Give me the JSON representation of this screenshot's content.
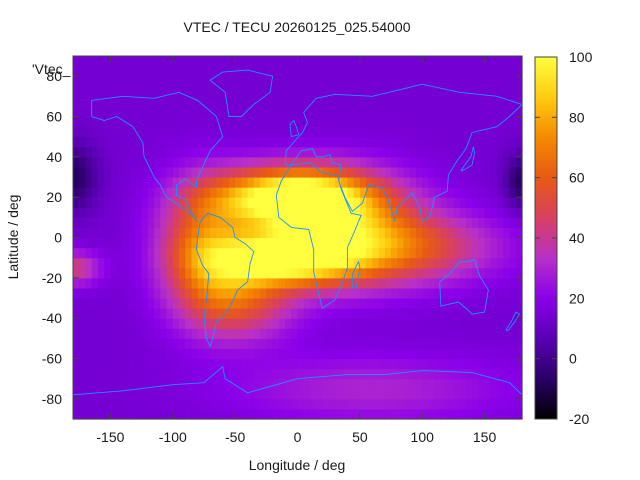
{
  "chart_data": {
    "type": "heatmap",
    "title": "VTEC / TECU 20260125_025.54000",
    "xlabel": "Longitude / deg",
    "ylabel": "Latitude / deg",
    "series_key": "'Vtec_",
    "xlim": [
      -180,
      180
    ],
    "ylim": [
      -90,
      90
    ],
    "x_ticks": [
      -150,
      -100,
      -50,
      0,
      50,
      100,
      150
    ],
    "x_tick_labels": [
      "-150",
      "-100",
      "-50",
      "0",
      "50",
      "100",
      "150"
    ],
    "y_ticks": [
      -80,
      -60,
      -40,
      -20,
      0,
      20,
      40,
      60,
      80
    ],
    "y_tick_labels": [
      "-80",
      "-60",
      "-40",
      "-20",
      "0",
      "20",
      "40",
      "60",
      "80"
    ],
    "colorbar": {
      "range": [
        -20,
        100
      ],
      "ticks": [
        -20,
        0,
        20,
        40,
        60,
        80,
        100
      ],
      "tick_labels": [
        "-20",
        "0",
        "20",
        "40",
        "60",
        "80",
        "100"
      ],
      "colors": [
        "#000000",
        "#2a0066",
        "#5a00b4",
        "#8a00ea",
        "#b830c8",
        "#d84060",
        "#e85a14",
        "#f48a00",
        "#ffcc10",
        "#ffff40"
      ]
    },
    "background_vtec": 14,
    "features": [
      {
        "name": "equatorial-anomaly-core",
        "lon": -5,
        "lat": 20,
        "peak": 88,
        "sigma_lon": 42,
        "sigma_lat": 10
      },
      {
        "name": "southern-crest",
        "lon": -10,
        "lat": -10,
        "peak": 72,
        "sigma_lon": 40,
        "sigma_lat": 9
      },
      {
        "name": "african-band",
        "lon": 30,
        "lat": 5,
        "peak": 55,
        "sigma_lon": 45,
        "sigma_lat": 18
      },
      {
        "name": "american-band",
        "lon": -75,
        "lat": -5,
        "peak": 48,
        "sigma_lon": 25,
        "sigma_lat": 22
      },
      {
        "name": "south-atlantic-extension",
        "lon": -45,
        "lat": -30,
        "peak": 38,
        "sigma_lon": 30,
        "sigma_lat": 14
      },
      {
        "name": "indian-ocean-band",
        "lon": 90,
        "lat": -5,
        "peak": 35,
        "sigma_lon": 50,
        "sigma_lat": 12
      },
      {
        "name": "pacific-west-patch",
        "lon": -180,
        "lat": -15,
        "peak": 30,
        "sigma_lon": 15,
        "sigma_lat": 6
      },
      {
        "name": "antarctic-patch",
        "lon": 60,
        "lat": -75,
        "peak": 16,
        "sigma_lon": 80,
        "sigma_lat": 12
      },
      {
        "name": "west-pacific-trough",
        "lon": -180,
        "lat": 30,
        "peak": -22,
        "sigma_lon": 14,
        "sigma_lat": 12
      },
      {
        "name": "east-pacific-trough",
        "lon": 180,
        "lat": 28,
        "peak": -22,
        "sigma_lon": 10,
        "sigma_lat": 10
      }
    ],
    "coastlines": [
      {
        "name": "north-america",
        "points": [
          [
            -165,
            68
          ],
          [
            -140,
            70
          ],
          [
            -115,
            69
          ],
          [
            -95,
            72
          ],
          [
            -80,
            68
          ],
          [
            -65,
            60
          ],
          [
            -60,
            50
          ],
          [
            -70,
            43
          ],
          [
            -76,
            35
          ],
          [
            -81,
            28
          ],
          [
            -81,
            25
          ],
          [
            -90,
            29
          ],
          [
            -97,
            26
          ],
          [
            -97,
            21
          ],
          [
            -90,
            19
          ],
          [
            -87,
            15
          ],
          [
            -83,
            10
          ],
          [
            -80,
            8
          ],
          [
            -86,
            12
          ],
          [
            -95,
            16
          ],
          [
            -105,
            20
          ],
          [
            -110,
            26
          ],
          [
            -115,
            30
          ],
          [
            -118,
            34
          ],
          [
            -123,
            40
          ],
          [
            -124,
            47
          ],
          [
            -132,
            55
          ],
          [
            -145,
            60
          ],
          [
            -155,
            58
          ],
          [
            -165,
            60
          ],
          [
            -165,
            68
          ]
        ]
      },
      {
        "name": "south-america",
        "points": [
          [
            -78,
            8
          ],
          [
            -72,
            12
          ],
          [
            -62,
            10
          ],
          [
            -52,
            5
          ],
          [
            -50,
            0
          ],
          [
            -42,
            -3
          ],
          [
            -35,
            -7
          ],
          [
            -38,
            -13
          ],
          [
            -40,
            -22
          ],
          [
            -48,
            -26
          ],
          [
            -53,
            -33
          ],
          [
            -58,
            -38
          ],
          [
            -65,
            -42
          ],
          [
            -68,
            -50
          ],
          [
            -70,
            -54
          ],
          [
            -73,
            -50
          ],
          [
            -75,
            -40
          ],
          [
            -73,
            -30
          ],
          [
            -71,
            -18
          ],
          [
            -76,
            -14
          ],
          [
            -81,
            -6
          ],
          [
            -80,
            0
          ],
          [
            -78,
            8
          ]
        ]
      },
      {
        "name": "greenland",
        "points": [
          [
            -55,
            60
          ],
          [
            -45,
            60
          ],
          [
            -35,
            66
          ],
          [
            -22,
            72
          ],
          [
            -20,
            80
          ],
          [
            -40,
            83
          ],
          [
            -60,
            82
          ],
          [
            -70,
            78
          ],
          [
            -58,
            72
          ],
          [
            -55,
            60
          ]
        ]
      },
      {
        "name": "africa",
        "points": [
          [
            -17,
            21
          ],
          [
            -13,
            28
          ],
          [
            -5,
            36
          ],
          [
            10,
            37
          ],
          [
            20,
            32
          ],
          [
            32,
            31
          ],
          [
            35,
            24
          ],
          [
            43,
            12
          ],
          [
            51,
            11
          ],
          [
            45,
            2
          ],
          [
            40,
            -5
          ],
          [
            40,
            -15
          ],
          [
            35,
            -24
          ],
          [
            30,
            -31
          ],
          [
            20,
            -35
          ],
          [
            17,
            -28
          ],
          [
            13,
            -17
          ],
          [
            13,
            -6
          ],
          [
            9,
            4
          ],
          [
            -5,
            5
          ],
          [
            -15,
            10
          ],
          [
            -17,
            21
          ]
        ]
      },
      {
        "name": "europe-asia",
        "points": [
          [
            -10,
            36
          ],
          [
            -9,
            43
          ],
          [
            -2,
            48
          ],
          [
            4,
            52
          ],
          [
            8,
            57
          ],
          [
            5,
            62
          ],
          [
            15,
            69
          ],
          [
            30,
            71
          ],
          [
            60,
            70
          ],
          [
            80,
            73
          ],
          [
            100,
            76
          ],
          [
            130,
            72
          ],
          [
            160,
            70
          ],
          [
            180,
            66
          ],
          [
            170,
            60
          ],
          [
            160,
            55
          ],
          [
            140,
            52
          ],
          [
            135,
            44
          ],
          [
            128,
            38
          ],
          [
            121,
            31
          ],
          [
            120,
            23
          ],
          [
            110,
            20
          ],
          [
            106,
            10
          ],
          [
            100,
            8
          ],
          [
            98,
            15
          ],
          [
            92,
            22
          ],
          [
            80,
            15
          ],
          [
            78,
            8
          ],
          [
            72,
            20
          ],
          [
            67,
            25
          ],
          [
            57,
            26
          ],
          [
            56,
            24
          ],
          [
            52,
            17
          ],
          [
            44,
            13
          ],
          [
            38,
            20
          ],
          [
            33,
            28
          ],
          [
            35,
            36
          ],
          [
            28,
            37
          ],
          [
            26,
            41
          ],
          [
            20,
            40
          ],
          [
            15,
            40
          ],
          [
            12,
            44
          ],
          [
            3,
            43
          ],
          [
            -5,
            36
          ],
          [
            -10,
            36
          ]
        ]
      },
      {
        "name": "australia",
        "points": [
          [
            114,
            -22
          ],
          [
            122,
            -18
          ],
          [
            130,
            -12
          ],
          [
            137,
            -12
          ],
          [
            142,
            -11
          ],
          [
            146,
            -19
          ],
          [
            153,
            -26
          ],
          [
            150,
            -37
          ],
          [
            140,
            -38
          ],
          [
            135,
            -35
          ],
          [
            129,
            -32
          ],
          [
            115,
            -34
          ],
          [
            114,
            -22
          ]
        ]
      },
      {
        "name": "antarctica-coast",
        "points": [
          [
            -180,
            -78
          ],
          [
            -140,
            -76
          ],
          [
            -100,
            -73
          ],
          [
            -75,
            -72
          ],
          [
            -60,
            -64
          ],
          [
            -58,
            -70
          ],
          [
            -40,
            -77
          ],
          [
            0,
            -70
          ],
          [
            40,
            -68
          ],
          [
            70,
            -68
          ],
          [
            100,
            -66
          ],
          [
            140,
            -67
          ],
          [
            170,
            -72
          ],
          [
            180,
            -78
          ]
        ]
      },
      {
        "name": "madagascar",
        "points": [
          [
            44,
            -25
          ],
          [
            47,
            -25
          ],
          [
            50,
            -15
          ],
          [
            49,
            -12
          ],
          [
            44,
            -18
          ],
          [
            44,
            -25
          ]
        ]
      },
      {
        "name": "japan",
        "points": [
          [
            131,
            33
          ],
          [
            135,
            34
          ],
          [
            140,
            36
          ],
          [
            142,
            42
          ],
          [
            141,
            45
          ],
          [
            139,
            40
          ],
          [
            133,
            35
          ],
          [
            131,
            33
          ]
        ]
      },
      {
        "name": "uk",
        "points": [
          [
            -5,
            50
          ],
          [
            1,
            51
          ],
          [
            -1,
            55
          ],
          [
            -3,
            58
          ],
          [
            -6,
            56
          ],
          [
            -5,
            50
          ]
        ]
      },
      {
        "name": "new-zealand",
        "points": [
          [
            167,
            -46
          ],
          [
            172,
            -41
          ],
          [
            175,
            -37
          ],
          [
            178,
            -38
          ],
          [
            174,
            -42
          ],
          [
            169,
            -46
          ],
          [
            167,
            -46
          ]
        ]
      }
    ]
  }
}
